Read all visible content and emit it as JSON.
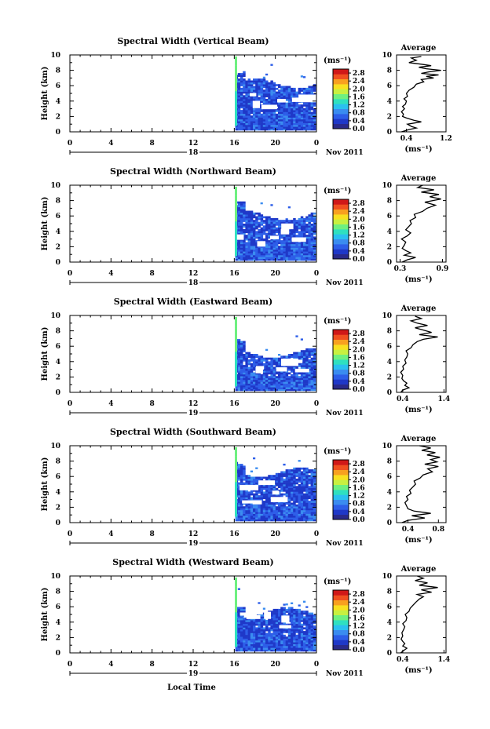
{
  "chart_data": {
    "type": "heatmap",
    "x_axis_label": "Local Time",
    "date_label": "Nov 2011",
    "x_ticks": [
      "0",
      "4",
      "8",
      "12",
      "16",
      "20",
      "0"
    ],
    "day_labels": [
      "18",
      "18",
      "19",
      "19",
      "19"
    ],
    "y_label": "Height (km)",
    "y_ticks": [
      "0",
      "2",
      "4",
      "6",
      "8",
      "10"
    ],
    "colorbar": {
      "unit": "(ms⁻¹)",
      "ticks": [
        "2.8",
        "2.4",
        "2.0",
        "1.6",
        "1.2",
        "0.8",
        "0.4",
        "0.0"
      ],
      "range": [
        0,
        3.0
      ],
      "colors": [
        "#2a2a8a",
        "#1f38c8",
        "#2d5ee8",
        "#3a8cf0",
        "#2ac0f0",
        "#2fe0c0",
        "#6ef080",
        "#c8f040",
        "#f8e020",
        "#f8a020",
        "#f05020",
        "#d01818"
      ]
    },
    "profile_title": "Average",
    "profile_xlabel": "(ms⁻¹)",
    "profile_ylim": [
      0,
      10
    ],
    "panels": [
      {
        "title": "Spectral Width (Vertical Beam)",
        "profile_xticks": [
          "0.4",
          "1.2"
        ],
        "profile_xlim": [
          0.2,
          1.2
        ],
        "profile": {
          "h": [
            0.0,
            0.3,
            0.5,
            0.7,
            1.0,
            1.3,
            1.5,
            1.8,
            2.0,
            2.3,
            2.6,
            3.0,
            3.3,
            3.6,
            4.0,
            4.3,
            4.6,
            5.0,
            5.4,
            5.8,
            6.2,
            6.5,
            6.8,
            7.0,
            7.2,
            7.4,
            7.6,
            7.8,
            8.0,
            8.2,
            8.4,
            8.6,
            8.8,
            9.0,
            9.3,
            9.6,
            9.8
          ],
          "w": [
            0.3,
            0.45,
            0.6,
            0.5,
            0.42,
            0.7,
            0.55,
            0.4,
            0.32,
            0.34,
            0.3,
            0.36,
            0.32,
            0.38,
            0.4,
            0.35,
            0.42,
            0.4,
            0.45,
            0.55,
            0.6,
            0.75,
            0.7,
            0.95,
            0.8,
            1.05,
            0.7,
            0.85,
            1.1,
            0.8,
            0.65,
            0.9,
            0.7,
            0.45,
            0.6,
            0.5,
            0.7
          ]
        }
      },
      {
        "title": "Spectral Width (Northward Beam)",
        "profile_xticks": [
          "0.3",
          "0.9"
        ],
        "profile_xlim": [
          0.25,
          0.95
        ],
        "profile": {
          "h": [
            0.0,
            0.3,
            0.6,
            0.9,
            1.2,
            1.5,
            1.8,
            2.2,
            2.6,
            3.0,
            3.4,
            3.8,
            4.2,
            4.6,
            5.0,
            5.4,
            5.8,
            6.2,
            6.6,
            7.0,
            7.4,
            7.8,
            8.2,
            8.5,
            8.8,
            9.1,
            9.4,
            9.7,
            10.0
          ],
          "w": [
            0.33,
            0.4,
            0.52,
            0.36,
            0.45,
            0.38,
            0.33,
            0.36,
            0.38,
            0.32,
            0.4,
            0.45,
            0.38,
            0.42,
            0.46,
            0.44,
            0.52,
            0.5,
            0.62,
            0.68,
            0.8,
            0.65,
            0.88,
            0.72,
            0.85,
            0.6,
            0.78,
            0.55,
            0.62
          ]
        }
      },
      {
        "title": "Spectral Width (Eastward Beam)",
        "profile_xticks": [
          "0.4",
          "1.4"
        ],
        "profile_xlim": [
          0.25,
          1.45
        ],
        "profile": {
          "h": [
            0.0,
            0.3,
            0.6,
            0.9,
            1.2,
            1.5,
            1.8,
            2.2,
            2.6,
            3.0,
            3.4,
            3.8,
            4.2,
            4.6,
            5.0,
            5.4,
            5.8,
            6.2,
            6.6,
            6.9,
            7.2,
            7.5,
            7.8,
            8.1,
            8.4,
            8.7,
            9.0,
            9.3,
            9.6,
            9.9
          ],
          "w": [
            0.35,
            0.4,
            0.55,
            0.45,
            0.5,
            0.42,
            0.38,
            0.4,
            0.35,
            0.42,
            0.4,
            0.48,
            0.45,
            0.5,
            0.52,
            0.48,
            0.6,
            0.65,
            0.75,
            0.9,
            1.25,
            0.8,
            1.1,
            0.9,
            0.7,
            1.0,
            0.75,
            0.6,
            0.85,
            0.7
          ]
        }
      },
      {
        "title": "Spectral Width (Southward Beam)",
        "profile_xticks": [
          "0.4",
          "0.8"
        ],
        "profile_xlim": [
          0.25,
          0.9
        ],
        "profile": {
          "h": [
            0.0,
            0.3,
            0.6,
            0.9,
            1.2,
            1.5,
            1.8,
            2.2,
            2.6,
            3.0,
            3.4,
            3.8,
            4.2,
            4.6,
            5.0,
            5.4,
            5.8,
            6.2,
            6.6,
            7.0,
            7.3,
            7.6,
            7.9,
            8.2,
            8.5,
            8.8,
            9.1,
            9.4,
            9.7,
            10.0
          ],
          "w": [
            0.32,
            0.4,
            0.62,
            0.45,
            0.7,
            0.48,
            0.4,
            0.38,
            0.36,
            0.4,
            0.38,
            0.44,
            0.42,
            0.46,
            0.5,
            0.48,
            0.56,
            0.6,
            0.72,
            0.66,
            0.8,
            0.62,
            0.78,
            0.7,
            0.82,
            0.65,
            0.76,
            0.58,
            0.7,
            0.55
          ]
        }
      },
      {
        "title": "Spectral Width (Westward Beam)",
        "profile_xticks": [
          "0.4",
          "1.4"
        ],
        "profile_xlim": [
          0.25,
          1.45
        ],
        "profile": {
          "h": [
            0.0,
            0.3,
            0.6,
            0.9,
            1.2,
            1.5,
            1.8,
            2.2,
            2.6,
            3.0,
            3.4,
            3.8,
            4.2,
            4.6,
            5.0,
            5.4,
            5.8,
            6.2,
            6.6,
            7.0,
            7.3,
            7.6,
            7.9,
            8.2,
            8.5,
            8.8,
            9.1,
            9.4,
            9.7,
            10.0
          ],
          "w": [
            0.35,
            0.42,
            0.5,
            0.4,
            0.45,
            0.4,
            0.36,
            0.4,
            0.38,
            0.42,
            0.45,
            0.4,
            0.48,
            0.5,
            0.46,
            0.55,
            0.58,
            0.65,
            0.72,
            0.8,
            0.9,
            0.75,
            1.1,
            0.85,
            1.25,
            0.8,
            1.0,
            0.7,
            0.9,
            0.75
          ]
        }
      }
    ]
  }
}
